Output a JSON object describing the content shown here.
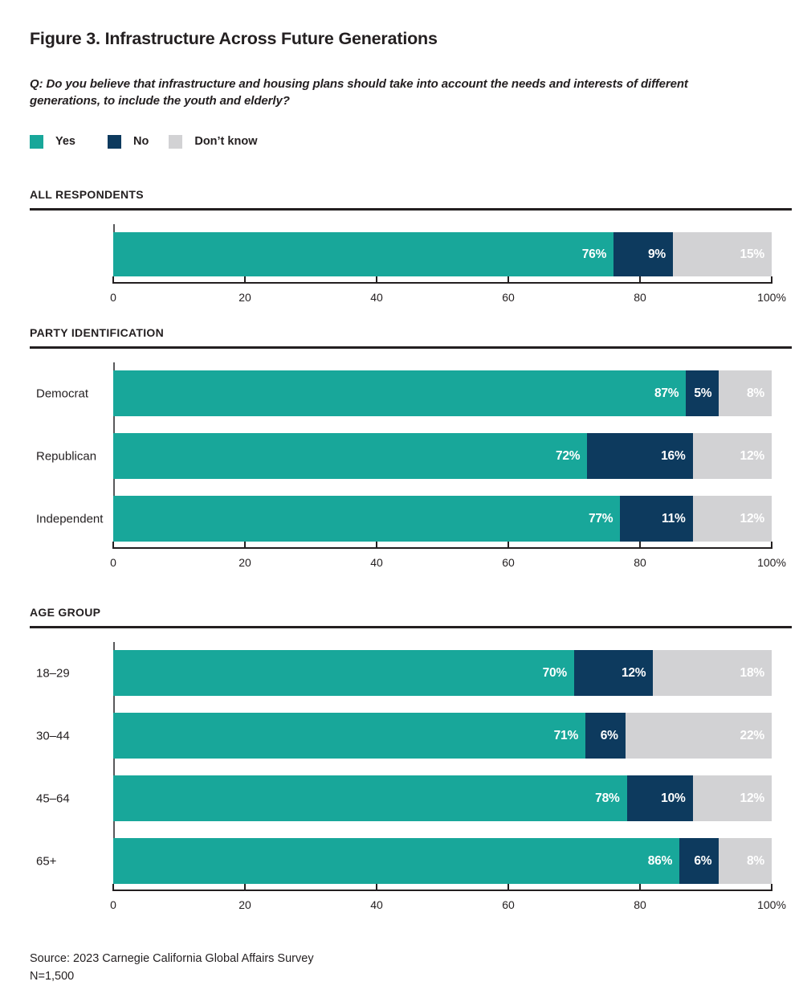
{
  "figure": {
    "title": "Figure 3. Infrastructure Across Future Generations",
    "question_lines": [
      "Q: Do you believe that infrastructure and housing plans should take into account the needs and interests of different",
      "generations, to include the youth and elderly?"
    ]
  },
  "legend": {
    "items": [
      {
        "label": "Yes",
        "color": "#18a79a"
      },
      {
        "label": "No",
        "color": "#0d3a5e"
      },
      {
        "label": "Don’t know",
        "color": "#d2d2d4"
      }
    ]
  },
  "colors": {
    "yes": "#18a79a",
    "no": "#0d3a5e",
    "dont_know": "#d2d2d4",
    "text": "#231f20",
    "axis_line": "#231f20",
    "spine": "#58595b"
  },
  "chart_data": [
    {
      "type": "bar",
      "orientation": "horizontal",
      "stacked": true,
      "section": "ALL RESPONDENTS",
      "categories": [
        ""
      ],
      "series": [
        {
          "name": "Yes",
          "values": [
            76
          ]
        },
        {
          "name": "No",
          "values": [
            9
          ]
        },
        {
          "name": "Don’t know",
          "values": [
            15
          ]
        }
      ],
      "value_suffix": "%",
      "xlim": [
        0,
        100
      ],
      "x_ticks": [
        0,
        20,
        40,
        60,
        80,
        100
      ],
      "x_tick_labels": [
        "0",
        "20",
        "40",
        "60",
        "80",
        "100%"
      ],
      "grid": false,
      "legend_position": "top"
    },
    {
      "type": "bar",
      "orientation": "horizontal",
      "stacked": true,
      "section": "PARTY IDENTIFICATION",
      "categories": [
        "Democrat",
        "Republican",
        "Independent"
      ],
      "series": [
        {
          "name": "Yes",
          "values": [
            87,
            72,
            77
          ]
        },
        {
          "name": "No",
          "values": [
            5,
            16,
            11
          ]
        },
        {
          "name": "Don’t know",
          "values": [
            8,
            12,
            12
          ]
        }
      ],
      "value_suffix": "%",
      "xlim": [
        0,
        100
      ],
      "x_ticks": [
        0,
        20,
        40,
        60,
        80,
        100
      ],
      "x_tick_labels": [
        "0",
        "20",
        "40",
        "60",
        "80",
        "100%"
      ],
      "grid": false,
      "legend_position": "top"
    },
    {
      "type": "bar",
      "orientation": "horizontal",
      "stacked": true,
      "section": "AGE GROUP",
      "categories": [
        "18–29",
        "30–44",
        "45–64",
        "65+"
      ],
      "series": [
        {
          "name": "Yes",
          "values": [
            70,
            71,
            78,
            86
          ]
        },
        {
          "name": "No",
          "values": [
            12,
            6,
            10,
            6
          ]
        },
        {
          "name": "Don’t know",
          "values": [
            18,
            22,
            12,
            8
          ]
        }
      ],
      "value_suffix": "%",
      "xlim": [
        0,
        100
      ],
      "x_ticks": [
        0,
        20,
        40,
        60,
        80,
        100
      ],
      "x_tick_labels": [
        "0",
        "20",
        "40",
        "60",
        "80",
        "100%"
      ],
      "grid": false,
      "legend_position": "top"
    }
  ],
  "footer": {
    "source": "Source: 2023 Carnegie California Global Affairs Survey",
    "n": "N=1,500"
  }
}
